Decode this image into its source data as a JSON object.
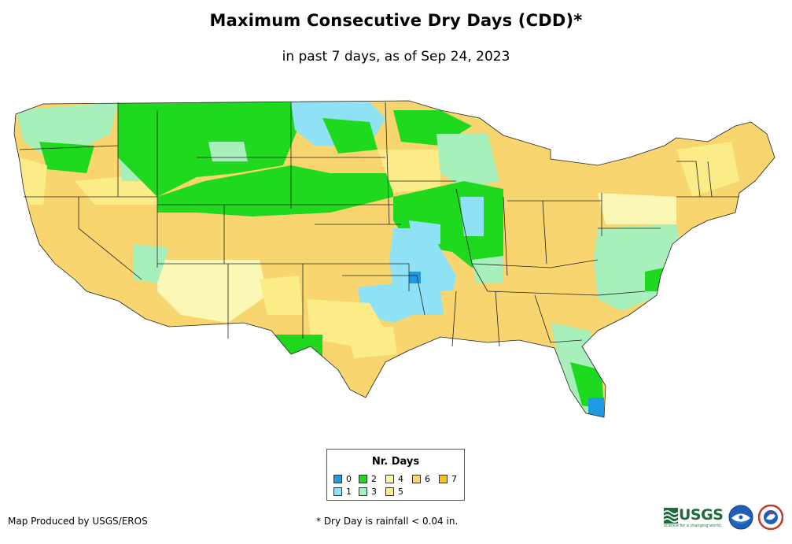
{
  "title": "Maximum Consecutive Dry Days (CDD)*",
  "subtitle": "in past 7 days, as of Sep 24, 2023",
  "legend": {
    "title": "Nr. Days",
    "items": [
      {
        "label": "0",
        "color": "#1f9be6"
      },
      {
        "label": "1",
        "color": "#8fe1f5"
      },
      {
        "label": "2",
        "color": "#1fd91f"
      },
      {
        "label": "3",
        "color": "#a7f0bb"
      },
      {
        "label": "4",
        "color": "#fbf7b4"
      },
      {
        "label": "5",
        "color": "#fbec87"
      },
      {
        "label": "6",
        "color": "#f8d56e"
      },
      {
        "label": "7",
        "color": "#f7c21b"
      }
    ]
  },
  "credit": "Map Produced by USGS/EROS",
  "footnote": "* Dry Day is rainfall < 0.04 in.",
  "logos": {
    "usgs": "USGS",
    "usgs_tagline": "science for a changing world",
    "noaa_text": "NOAA",
    "nws_text": "NWS"
  }
}
